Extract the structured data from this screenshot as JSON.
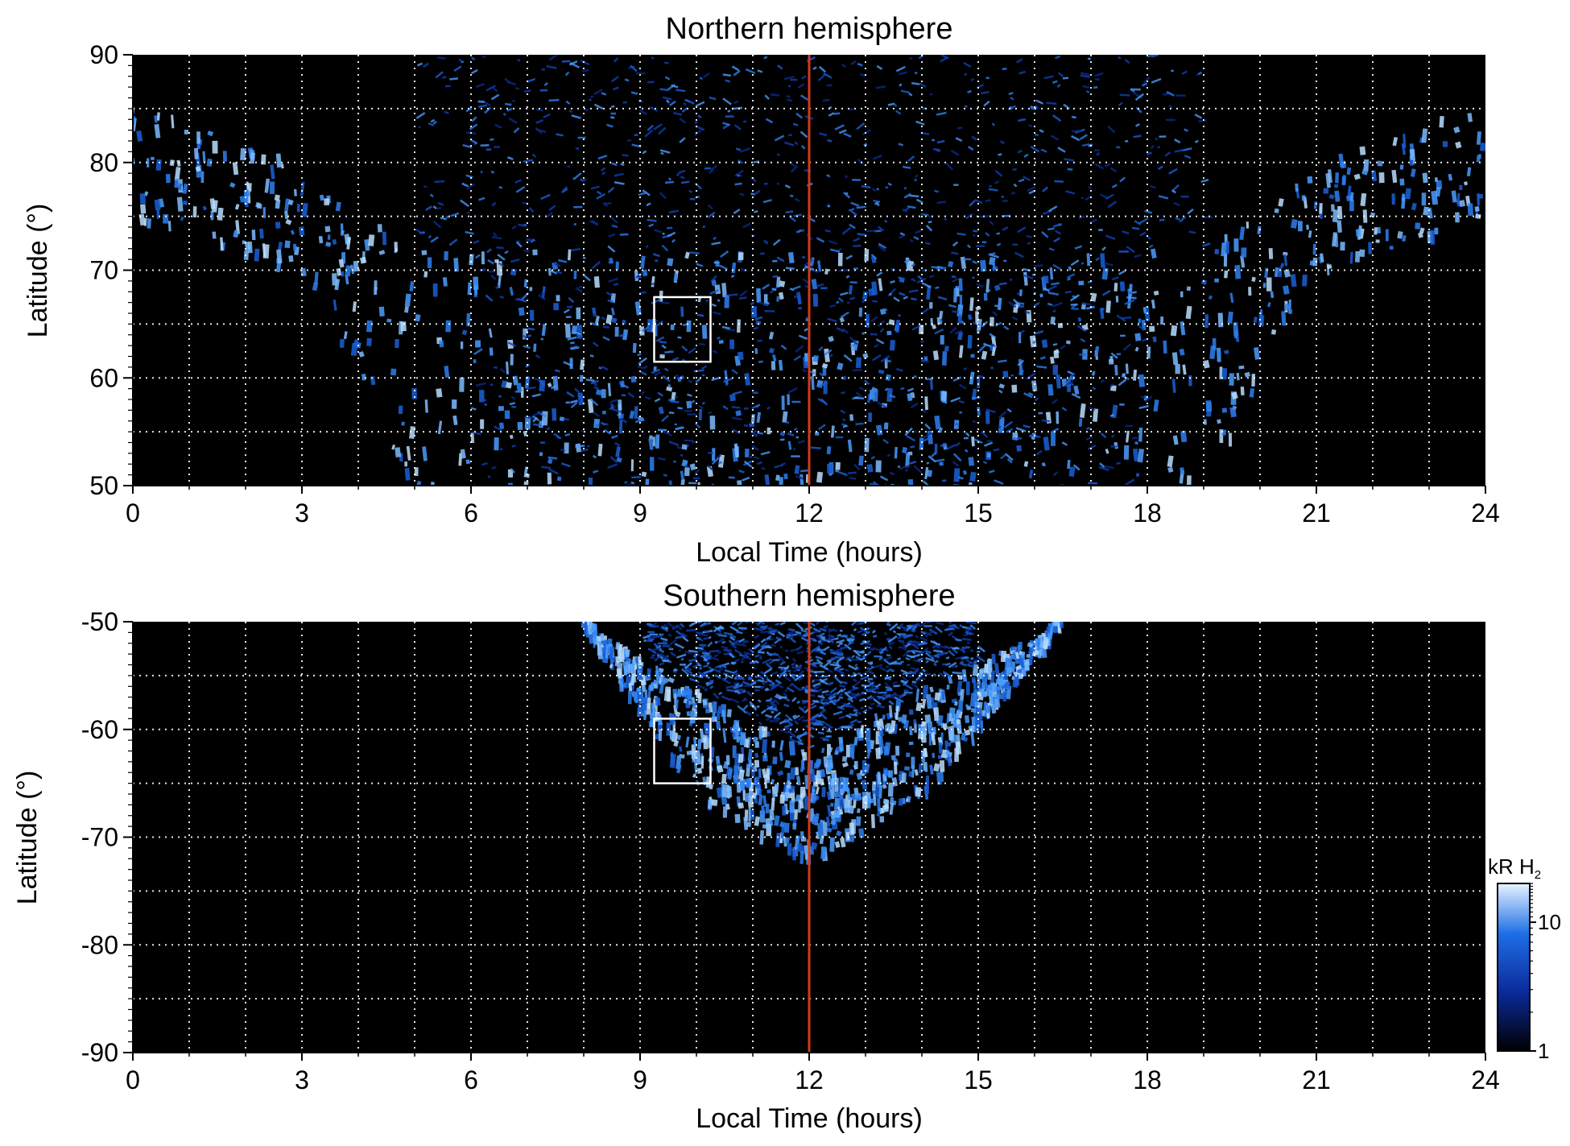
{
  "chart_data": [
    {
      "type": "heatmap",
      "title": "Northern hemisphere",
      "xlabel": "Local Time (hours)",
      "ylabel": "Latitude (°)",
      "xlim": [
        0,
        24
      ],
      "ylim": [
        50,
        90
      ],
      "x_ticks": [
        "0",
        "3",
        "6",
        "9",
        "12",
        "15",
        "18",
        "21",
        "24"
      ],
      "y_ticks": [
        "50",
        "60",
        "70",
        "80",
        "90"
      ],
      "grid": true,
      "reference_line": {
        "x": 12,
        "color": "#d23a17"
      },
      "highlight_box": {
        "x": [
          9.25,
          10.25
        ],
        "y": [
          61.5,
          67.5
        ]
      },
      "auroral_oval": {
        "description_points": [
          {
            "lt": 0,
            "lat": [
              75,
              86
            ]
          },
          {
            "lt": 3,
            "lat": [
              70,
              80
            ]
          },
          {
            "lt": 5,
            "lat": [
              50,
              72
            ]
          },
          {
            "lt": 19,
            "lat": [
              50,
              72
            ]
          },
          {
            "lt": 21,
            "lat": [
              70,
              80
            ]
          },
          {
            "lt": 24,
            "lat": [
              75,
              86
            ]
          }
        ]
      }
    },
    {
      "type": "heatmap",
      "title": "Southern hemisphere",
      "xlabel": "Local Time (hours)",
      "ylabel": "Latitude (°)",
      "xlim": [
        0,
        24
      ],
      "ylim": [
        -90,
        -50
      ],
      "x_ticks": [
        "0",
        "3",
        "6",
        "9",
        "12",
        "15",
        "18",
        "21",
        "24"
      ],
      "y_ticks": [
        "-90",
        "-80",
        "-70",
        "-60",
        "-50"
      ],
      "grid": true,
      "reference_line": {
        "x": 12,
        "color": "#d23a17"
      },
      "highlight_box": {
        "x": [
          9.25,
          10.25
        ],
        "y": [
          -65,
          -59
        ]
      },
      "auroral_oval": {
        "description_points": [
          {
            "lt": 8,
            "lat": [
              -50,
              -50
            ]
          },
          {
            "lt": 10,
            "lat": [
              -56,
              -66
            ]
          },
          {
            "lt": 12,
            "lat": [
              -62,
              -72
            ]
          },
          {
            "lt": 14,
            "lat": [
              -56,
              -66
            ]
          },
          {
            "lt": 16.5,
            "lat": [
              -50,
              -50
            ]
          }
        ]
      }
    }
  ],
  "colorbar": {
    "label": "kR H",
    "label_subscript": "2",
    "ticks": [
      "1",
      "10"
    ],
    "range": [
      1,
      20
    ],
    "scale": "log",
    "colors": [
      "#000000",
      "#0a2a9a",
      "#1e6ee6",
      "#cfeaff"
    ]
  }
}
